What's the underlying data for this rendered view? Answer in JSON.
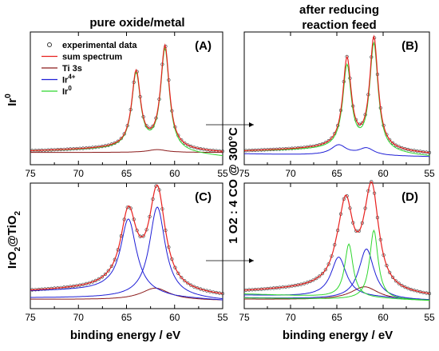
{
  "figure": {
    "column_titles": {
      "left": "pure oxide/metal",
      "right_line1": "after reducing",
      "right_line2": "reaction feed"
    },
    "row_labels": {
      "top": "Ir",
      "top_sup": "0",
      "bottom_main": "IrO",
      "bottom_sub1": "2",
      "bottom_mid": "@TiO",
      "bottom_sub2": "2"
    },
    "middle_label": "1 O2 : 4 CO @ 300°C",
    "xlabel": "binding energy / eV"
  },
  "legend": {
    "items": [
      {
        "label": "experimental data",
        "sup": "",
        "key": "data"
      },
      {
        "label": "sum spectrum",
        "sup": "",
        "key": "sum"
      },
      {
        "label": "Ti 3s",
        "sup": "",
        "key": "ti"
      },
      {
        "label": "Ir",
        "sup": "4+",
        "key": "ir4"
      },
      {
        "label": "Ir",
        "sup": "0",
        "key": "ir0"
      }
    ]
  },
  "colors": {
    "data": "#333333",
    "sum": "#e8201e",
    "ti": "#8b1a1a",
    "ir4": "#1f1fd6",
    "ir0": "#2ed62e",
    "axis": "#000000"
  },
  "chart_data": [
    {
      "panel": "(A)",
      "type": "line",
      "xlim": [
        75,
        55
      ],
      "xticks": [
        75,
        70,
        65,
        60,
        55
      ],
      "series": [
        {
          "name": "experimental data",
          "style": "markers",
          "peaks": [
            {
              "c": 64.0,
              "h": 0.53,
              "w": 0.55
            },
            {
              "c": 61.0,
              "h": 0.72,
              "w": 0.55
            }
          ],
          "bg": [
            [
              75,
              0.04
            ],
            [
              65,
              0.06
            ],
            [
              62,
              0.05
            ],
            [
              55,
              0.03
            ]
          ]
        },
        {
          "name": "sum spectrum",
          "peaks": [
            {
              "c": 64.0,
              "h": 0.53,
              "w": 0.55
            },
            {
              "c": 61.0,
              "h": 0.72,
              "w": 0.55
            }
          ],
          "bg": [
            [
              75,
              0.04
            ],
            [
              65,
              0.06
            ],
            [
              62,
              0.05
            ],
            [
              55,
              0.03
            ]
          ]
        },
        {
          "name": "Ti 3s",
          "peaks": [
            {
              "c": 61.8,
              "h": 0.02,
              "w": 1.2
            }
          ],
          "bg": [
            [
              75,
              0.03
            ],
            [
              55,
              0.03
            ]
          ]
        },
        {
          "name": "Ir0",
          "peaks": [
            {
              "c": 64.0,
              "h": 0.52,
              "w": 0.55
            },
            {
              "c": 61.0,
              "h": 0.71,
              "w": 0.55
            }
          ],
          "bg": [
            [
              75,
              0.04
            ],
            [
              65,
              0.055
            ],
            [
              62,
              0.04
            ],
            [
              55,
              0.0
            ]
          ]
        }
      ]
    },
    {
      "panel": "(B)",
      "type": "line",
      "xlim": [
        75,
        55
      ],
      "xticks": [
        75,
        70,
        65,
        60,
        55
      ],
      "series": [
        {
          "name": "experimental data",
          "style": "markers",
          "peaks": [
            {
              "c": 63.9,
              "h": 0.62,
              "w": 0.55
            },
            {
              "c": 61.0,
              "h": 0.78,
              "w": 0.55
            }
          ],
          "bg": [
            [
              75,
              0.04
            ],
            [
              65,
              0.06
            ],
            [
              55,
              0.02
            ]
          ]
        },
        {
          "name": "sum spectrum",
          "peaks": [
            {
              "c": 63.9,
              "h": 0.62,
              "w": 0.55
            },
            {
              "c": 61.0,
              "h": 0.78,
              "w": 0.55
            }
          ],
          "bg": [
            [
              75,
              0.04
            ],
            [
              65,
              0.06
            ],
            [
              55,
              0.02
            ]
          ]
        },
        {
          "name": "Ir4+",
          "peaks": [
            {
              "c": 64.8,
              "h": 0.07,
              "w": 1.0
            },
            {
              "c": 61.8,
              "h": 0.05,
              "w": 1.0
            }
          ],
          "bg": [
            [
              75,
              0.02
            ],
            [
              55,
              0.0
            ]
          ]
        },
        {
          "name": "Ir0",
          "peaks": [
            {
              "c": 63.9,
              "h": 0.58,
              "w": 0.55
            },
            {
              "c": 61.0,
              "h": 0.75,
              "w": 0.55
            }
          ],
          "bg": [
            [
              75,
              0.04
            ],
            [
              65,
              0.05
            ],
            [
              55,
              0.0
            ]
          ]
        }
      ]
    },
    {
      "panel": "(C)",
      "type": "line",
      "xlim": [
        75,
        55
      ],
      "xticks": [
        75,
        70,
        65,
        60,
        55
      ],
      "series": [
        {
          "name": "experimental data",
          "style": "markers",
          "peaks": [
            {
              "c": 64.8,
              "h": 0.55,
              "w": 1.0
            },
            {
              "c": 61.8,
              "h": 0.72,
              "w": 1.0
            },
            {
              "c": 62.0,
              "h": 0.03,
              "w": 1.8
            }
          ],
          "bg": [
            [
              75,
              0.07
            ],
            [
              67,
              0.09
            ],
            [
              60,
              0.05
            ],
            [
              55,
              0.03
            ]
          ]
        },
        {
          "name": "sum spectrum",
          "peaks": [
            {
              "c": 64.8,
              "h": 0.55,
              "w": 1.0
            },
            {
              "c": 61.8,
              "h": 0.72,
              "w": 1.0
            },
            {
              "c": 62.0,
              "h": 0.03,
              "w": 1.8
            }
          ],
          "bg": [
            [
              75,
              0.07
            ],
            [
              67,
              0.09
            ],
            [
              60,
              0.05
            ],
            [
              55,
              0.03
            ]
          ]
        },
        {
          "name": "Ti 3s",
          "peaks": [
            {
              "c": 62.0,
              "h": 0.09,
              "w": 1.8
            }
          ],
          "bg": [
            [
              75,
              0.01
            ],
            [
              55,
              0.0
            ]
          ]
        },
        {
          "name": "Ir4+ (1)",
          "peaks": [
            {
              "c": 64.8,
              "h": 0.55,
              "w": 1.0
            }
          ],
          "bg": [
            [
              75,
              0.07
            ],
            [
              67,
              0.08
            ],
            [
              60,
              0.02
            ],
            [
              55,
              0.0
            ]
          ]
        },
        {
          "name": "Ir4+ (2)",
          "peaks": [
            {
              "c": 61.8,
              "h": 0.68,
              "w": 1.0
            }
          ],
          "bg": [
            [
              75,
              0.02
            ],
            [
              60,
              0.02
            ],
            [
              55,
              0.0
            ]
          ]
        }
      ]
    },
    {
      "panel": "(D)",
      "type": "line",
      "xlim": [
        75,
        55
      ],
      "xticks": [
        75,
        70,
        65,
        60,
        55
      ],
      "series": [
        {
          "name": "experimental data",
          "style": "markers",
          "peaks": [
            {
              "c": 64.0,
              "h": 0.56,
              "w": 0.9
            },
            {
              "c": 61.2,
              "h": 0.68,
              "w": 0.9
            },
            {
              "c": 64.8,
              "h": 0.12,
              "w": 1.0
            },
            {
              "c": 61.8,
              "h": 0.12,
              "w": 1.0
            }
          ],
          "bg": [
            [
              75,
              0.07
            ],
            [
              67,
              0.09
            ],
            [
              60,
              0.05
            ],
            [
              55,
              0.03
            ]
          ]
        },
        {
          "name": "sum spectrum",
          "peaks": [
            {
              "c": 64.0,
              "h": 0.56,
              "w": 0.9
            },
            {
              "c": 61.2,
              "h": 0.68,
              "w": 0.9
            },
            {
              "c": 64.8,
              "h": 0.12,
              "w": 1.0
            },
            {
              "c": 61.8,
              "h": 0.12,
              "w": 1.0
            }
          ],
          "bg": [
            [
              75,
              0.07
            ],
            [
              67,
              0.09
            ],
            [
              60,
              0.05
            ],
            [
              55,
              0.03
            ]
          ]
        },
        {
          "name": "Ti 3s",
          "peaks": [
            {
              "c": 62.0,
              "h": 0.1,
              "w": 1.8
            }
          ],
          "bg": [
            [
              75,
              0.01
            ],
            [
              55,
              0.0
            ]
          ]
        },
        {
          "name": "Ir4+ (1)",
          "peaks": [
            {
              "c": 64.8,
              "h": 0.3,
              "w": 1.0
            }
          ],
          "bg": [
            [
              75,
              0.04
            ],
            [
              60,
              0.02
            ],
            [
              55,
              0.0
            ]
          ]
        },
        {
          "name": "Ir4+ (2)",
          "peaks": [
            {
              "c": 61.8,
              "h": 0.38,
              "w": 1.0
            }
          ],
          "bg": [
            [
              75,
              0.02
            ],
            [
              55,
              0.0
            ]
          ]
        },
        {
          "name": "Ir0 (1)",
          "peaks": [
            {
              "c": 63.7,
              "h": 0.4,
              "w": 0.55
            }
          ],
          "bg": [
            [
              75,
              0.05
            ],
            [
              62,
              0.02
            ],
            [
              55,
              0.0
            ]
          ]
        },
        {
          "name": "Ir0 (2)",
          "peaks": [
            {
              "c": 61.0,
              "h": 0.52,
              "w": 0.55
            }
          ],
          "bg": [
            [
              75,
              0.02
            ],
            [
              55,
              0.0
            ]
          ]
        }
      ]
    }
  ]
}
